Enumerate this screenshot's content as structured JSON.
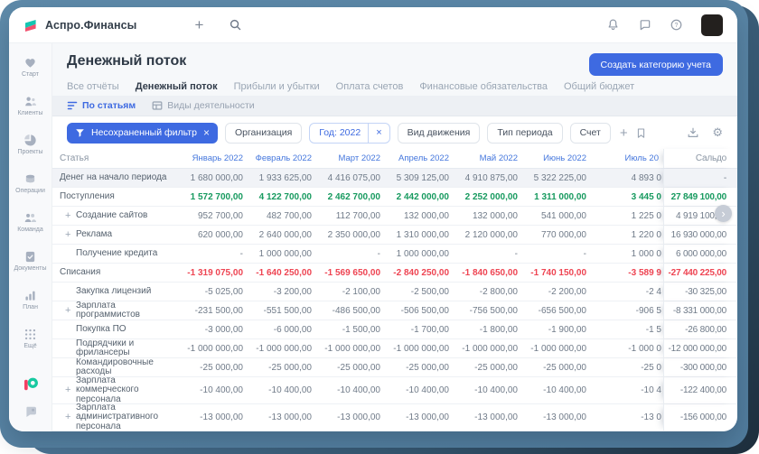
{
  "topbar": {
    "app_name": "Аспро.Финансы"
  },
  "sidebar": {
    "items": [
      {
        "label": "Старт",
        "icon": "start"
      },
      {
        "label": "Клиенты",
        "icon": "clients"
      },
      {
        "label": "Проекты",
        "icon": "projects"
      },
      {
        "label": "Операции",
        "icon": "operations"
      },
      {
        "label": "Команда",
        "icon": "team"
      },
      {
        "label": "Документы",
        "icon": "documents"
      },
      {
        "label": "План",
        "icon": "plan"
      },
      {
        "label": "Ещё",
        "icon": "more"
      }
    ]
  },
  "page": {
    "title": "Денежный поток",
    "create_button_label": "Создать категорию учета"
  },
  "tabs": {
    "items": [
      "Все отчёты",
      "Денежный поток",
      "Прибыли и убытки",
      "Оплата счетов",
      "Финансовые обязательства",
      "Общий бюджет"
    ],
    "active": "Денежный поток"
  },
  "view_switch": {
    "items": [
      {
        "label": "По статьям",
        "icon": "list-sort",
        "active": true
      },
      {
        "label": "Виды деятельности",
        "icon": "grid-table",
        "active": false
      }
    ]
  },
  "filter_bar": {
    "primary_chip": {
      "label": "Несохраненный фильтр",
      "close": "×"
    },
    "chips": [
      {
        "label": "Организация",
        "active": false
      },
      {
        "label": "Год: 2022",
        "active": true,
        "close": "×"
      },
      {
        "label": "Вид движения",
        "active": false
      },
      {
        "label": "Тип периода",
        "active": false
      },
      {
        "label": "Счет",
        "active": false
      }
    ]
  },
  "table": {
    "columns": {
      "article": "Статья",
      "months": [
        "Январь 2022",
        "Февраль 2022",
        "Март 2022",
        "Апрель 2022",
        "Май 2022",
        "Июнь 2022",
        "Июль 20"
      ],
      "saldo": "Сальдо"
    },
    "rows": [
      {
        "name": "Денег на начало периода",
        "type": "opening",
        "indent": false,
        "expandable": false,
        "values": [
          "1 680 000,00",
          "1 933 625,00",
          "4 416 075,00",
          "5 309 125,00",
          "4 910 875,00",
          "5 322 225,00",
          "4 893 0"
        ],
        "saldo": "-"
      },
      {
        "name": "Поступления",
        "type": "income",
        "indent": false,
        "expandable": false,
        "values": [
          "1 572 700,00",
          "4 122 700,00",
          "2 462 700,00",
          "2 442 000,00",
          "2 252 000,00",
          "1 311 000,00",
          "3 445 0"
        ],
        "saldo": "27 849 100,00"
      },
      {
        "name": "Создание сайтов",
        "type": "item",
        "indent": true,
        "expandable": true,
        "values": [
          "952 700,00",
          "482 700,00",
          "112 700,00",
          "132 000,00",
          "132 000,00",
          "541 000,00",
          "1 225 0"
        ],
        "saldo": "4 919 100,00"
      },
      {
        "name": "Реклама",
        "type": "item",
        "indent": true,
        "expandable": true,
        "values": [
          "620 000,00",
          "2 640 000,00",
          "2 350 000,00",
          "1 310 000,00",
          "2 120 000,00",
          "770 000,00",
          "1 220 0"
        ],
        "saldo": "16 930 000,00"
      },
      {
        "name": "Получение кредита",
        "type": "item",
        "indent": true,
        "expandable": false,
        "values": [
          "-",
          "1 000 000,00",
          "-",
          "1 000 000,00",
          "-",
          "-",
          "1 000 0"
        ],
        "saldo": "6 000 000,00"
      },
      {
        "name": "Списания",
        "type": "expense",
        "indent": false,
        "expandable": false,
        "values": [
          "-1 319 075,00",
          "-1 640 250,00",
          "-1 569 650,00",
          "-2 840 250,00",
          "-1 840 650,00",
          "-1 740 150,00",
          "-3 589 9"
        ],
        "saldo": "-27 440 225,00"
      },
      {
        "name": "Закупка лицензий",
        "type": "item",
        "indent": true,
        "expandable": false,
        "values": [
          "-5 025,00",
          "-3 200,00",
          "-2 100,00",
          "-2 500,00",
          "-2 800,00",
          "-2 200,00",
          "-2 4"
        ],
        "saldo": "-30 325,00"
      },
      {
        "name": "Зарплата программистов",
        "type": "item",
        "indent": true,
        "expandable": true,
        "values": [
          "-231 500,00",
          "-551 500,00",
          "-486 500,00",
          "-506 500,00",
          "-756 500,00",
          "-656 500,00",
          "-906 5"
        ],
        "saldo": "-8 331 000,00"
      },
      {
        "name": "Покупка ПО",
        "type": "item",
        "indent": true,
        "expandable": false,
        "values": [
          "-3 000,00",
          "-6 000,00",
          "-1 500,00",
          "-1 700,00",
          "-1 800,00",
          "-1 900,00",
          "-1 5"
        ],
        "saldo": "-26 800,00"
      },
      {
        "name": "Подрядчики и фрилансеры",
        "type": "item",
        "indent": true,
        "expandable": false,
        "values": [
          "-1 000 000,00",
          "-1 000 000,00",
          "-1 000 000,00",
          "-1 000 000,00",
          "-1 000 000,00",
          "-1 000 000,00",
          "-1 000 0"
        ],
        "saldo": "-12 000 000,00"
      },
      {
        "name": "Командировочные расходы",
        "type": "item",
        "indent": true,
        "expandable": false,
        "values": [
          "-25 000,00",
          "-25 000,00",
          "-25 000,00",
          "-25 000,00",
          "-25 000,00",
          "-25 000,00",
          "-25 0"
        ],
        "saldo": "-300 000,00"
      },
      {
        "name": "Зарплата коммерческого персонала",
        "type": "item",
        "indent": true,
        "expandable": true,
        "tall": true,
        "values": [
          "-10 400,00",
          "-10 400,00",
          "-10 400,00",
          "-10 400,00",
          "-10 400,00",
          "-10 400,00",
          "-10 4"
        ],
        "saldo": "-122 400,00"
      },
      {
        "name": "Зарплата административного персонала",
        "type": "item",
        "indent": true,
        "expandable": true,
        "tall": true,
        "values": [
          "-13 000,00",
          "-13 000,00",
          "-13 000,00",
          "-13 000,00",
          "-13 000,00",
          "-13 000,00",
          "-13 0"
        ],
        "saldo": "-156 000,00"
      }
    ]
  },
  "scroll_hint": "›"
}
